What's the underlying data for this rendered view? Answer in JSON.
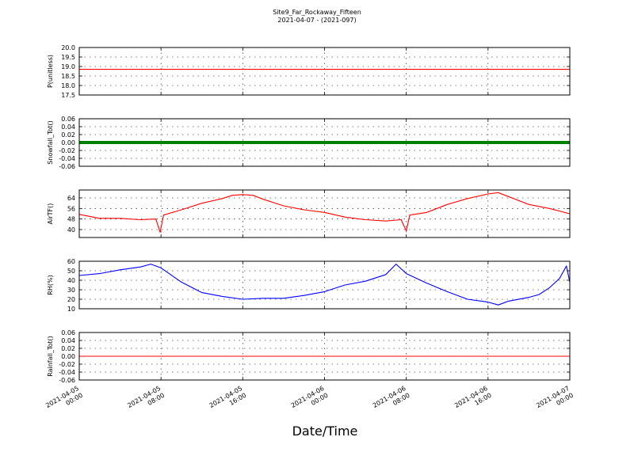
{
  "title": {
    "line1": "Site9_Far_Rockaway_Fifteen",
    "line2": "2021-04-07 - (2021-097)"
  },
  "xlabel": "Date/Time",
  "colors": {
    "red": "#ff0000",
    "green": "#008000",
    "blue": "#0000ff",
    "axis": "#000000",
    "grid": "#000000"
  },
  "chart_data": {
    "type": "line",
    "grid": true,
    "x_ticks": [
      {
        "value": "2021-04-05 00:00",
        "line1": "2021-04-05",
        "line2": "00:00"
      },
      {
        "value": "2021-04-05 08:00",
        "line1": "2021-04-05",
        "line2": "08:00"
      },
      {
        "value": "2021-04-05 16:00",
        "line1": "2021-04-05",
        "line2": "16:00"
      },
      {
        "value": "2021-04-06 00:00",
        "line1": "2021-04-06",
        "line2": "00:00"
      },
      {
        "value": "2021-04-06 08:00",
        "line1": "2021-04-06",
        "line2": "08:00"
      },
      {
        "value": "2021-04-06 16:00",
        "line1": "2021-04-06",
        "line2": "16:00"
      },
      {
        "value": "2021-04-07 00:00",
        "line1": "2021-04-07",
        "line2": "00:00"
      }
    ],
    "xlim": [
      "2021-04-05 00:00",
      "2021-04-07 00:00"
    ],
    "panels": [
      {
        "ylabel": "P(unitless)",
        "ylim": [
          17.5,
          20.0
        ],
        "yticks": [
          "17.5",
          "18.0",
          "18.5",
          "19.0",
          "19.5",
          "20.0"
        ],
        "color": "red",
        "style": "line",
        "x": [
          "2021-04-05 00:00",
          "2021-04-07 00:00"
        ],
        "values": [
          18.85,
          18.85
        ]
      },
      {
        "ylabel": "Snowfall_Tot()",
        "ylim": [
          -0.06,
          0.06
        ],
        "yticks": [
          "-0.06",
          "-0.04",
          "-0.02",
          "0.00",
          "0.02",
          "0.04",
          "0.06"
        ],
        "color": "green",
        "style": "thick",
        "x": [
          "2021-04-05 00:00",
          "2021-04-07 00:00"
        ],
        "values": [
          0.0,
          0.0
        ]
      },
      {
        "ylabel": "AirTF()",
        "ylim": [
          34,
          70
        ],
        "yticks": [
          "40",
          "48",
          "56",
          "64"
        ],
        "color": "red",
        "style": "line",
        "x": [
          "2021-04-05 00:00",
          "2021-04-05 02:00",
          "2021-04-05 04:00",
          "2021-04-05 06:00",
          "2021-04-05 07:30",
          "2021-04-05 07:55",
          "2021-04-05 08:15",
          "2021-04-05 10:00",
          "2021-04-05 12:00",
          "2021-04-05 14:00",
          "2021-04-05 15:00",
          "2021-04-05 16:00",
          "2021-04-05 17:00",
          "2021-04-05 18:00",
          "2021-04-05 20:00",
          "2021-04-05 22:00",
          "2021-04-06 00:00",
          "2021-04-06 02:00",
          "2021-04-06 04:00",
          "2021-04-06 06:00",
          "2021-04-06 07:30",
          "2021-04-06 08:00",
          "2021-04-06 08:20",
          "2021-04-06 10:00",
          "2021-04-06 12:00",
          "2021-04-06 14:00",
          "2021-04-06 16:00",
          "2021-04-06 17:00",
          "2021-04-06 18:00",
          "2021-04-06 20:00",
          "2021-04-06 22:00",
          "2021-04-07 00:00"
        ],
        "values": [
          51.5,
          48.5,
          48.5,
          47.5,
          48,
          38,
          51,
          55,
          60,
          63.5,
          66,
          66.5,
          66,
          63,
          58,
          55,
          53,
          49.5,
          47.5,
          46.5,
          47.5,
          39,
          51,
          53,
          59,
          63.5,
          67,
          68,
          65,
          59,
          56,
          52
        ]
      },
      {
        "ylabel": "RH(%)",
        "ylim": [
          10,
          60
        ],
        "yticks": [
          "10",
          "20",
          "30",
          "40",
          "50",
          "60"
        ],
        "color": "blue",
        "style": "line",
        "x": [
          "2021-04-05 00:00",
          "2021-04-05 02:00",
          "2021-04-05 04:00",
          "2021-04-05 06:00",
          "2021-04-05 07:00",
          "2021-04-05 08:00",
          "2021-04-05 10:00",
          "2021-04-05 12:00",
          "2021-04-05 14:00",
          "2021-04-05 16:00",
          "2021-04-05 18:00",
          "2021-04-05 20:00",
          "2021-04-05 22:00",
          "2021-04-06 00:00",
          "2021-04-06 02:00",
          "2021-04-06 04:00",
          "2021-04-06 06:00",
          "2021-04-06 07:00",
          "2021-04-06 08:00",
          "2021-04-06 10:00",
          "2021-04-06 12:00",
          "2021-04-06 14:00",
          "2021-04-06 16:00",
          "2021-04-06 17:00",
          "2021-04-06 18:00",
          "2021-04-06 20:00",
          "2021-04-06 21:00",
          "2021-04-06 22:00",
          "2021-04-06 23:00",
          "2021-04-06 23:40",
          "2021-04-07 00:00"
        ],
        "values": [
          45,
          47,
          51,
          54,
          57,
          53,
          38,
          27,
          23,
          20,
          21,
          21,
          24,
          28,
          35,
          39,
          46,
          57,
          47,
          37,
          28,
          20,
          17,
          14,
          18,
          22,
          25,
          32,
          42,
          55,
          38
        ]
      },
      {
        "ylabel": "Rainfall_Tot()",
        "ylim": [
          -0.06,
          0.06
        ],
        "yticks": [
          "-0.06",
          "-0.04",
          "-0.02",
          "0.00",
          "0.02",
          "0.04",
          "0.06"
        ],
        "color": "red",
        "style": "line",
        "x": [
          "2021-04-05 00:00",
          "2021-04-07 00:00"
        ],
        "values": [
          0.0,
          0.0
        ]
      }
    ]
  }
}
